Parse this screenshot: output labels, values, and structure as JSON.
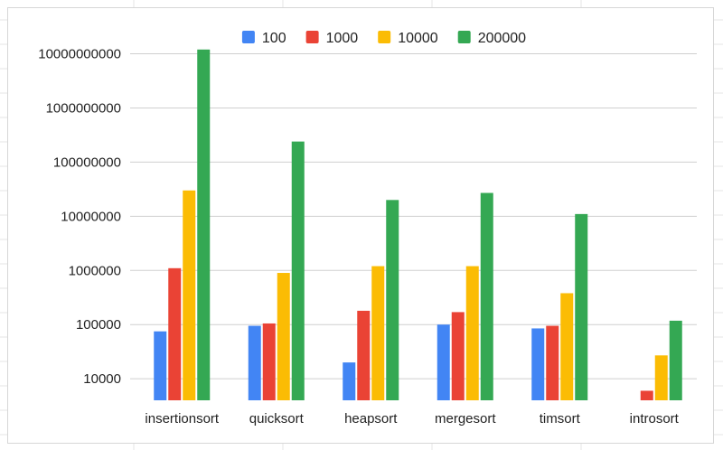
{
  "chart_data": {
    "type": "bar",
    "title": "",
    "xlabel": "",
    "ylabel": "",
    "yscale": "log",
    "ylim": [
      4000,
      15000000000
    ],
    "grid": true,
    "legend_position": "top",
    "categories": [
      "insertionsort",
      "quicksort",
      "heapsort",
      "mergesort",
      "timsort",
      "introsort"
    ],
    "y_ticks": [
      10000,
      100000,
      1000000,
      10000000,
      100000000,
      1000000000,
      10000000000
    ],
    "y_tick_labels": [
      "10000",
      "100000",
      "1000000",
      "10000000",
      "100000000",
      "1000000000",
      "10000000000"
    ],
    "series": [
      {
        "name": "100",
        "color": "#4285f4",
        "values": [
          75000,
          95000,
          20000,
          100000,
          85000,
          null
        ]
      },
      {
        "name": "1000",
        "color": "#ea4335",
        "values": [
          1100000,
          105000,
          180000,
          170000,
          95000,
          6000
        ]
      },
      {
        "name": "10000",
        "color": "#fbbc04",
        "values": [
          30000000,
          900000,
          1200000,
          1200000,
          380000,
          27000
        ]
      },
      {
        "name": "200000",
        "color": "#34a853",
        "values": [
          12000000000,
          240000000,
          20000000,
          27000000,
          11000000,
          118000
        ]
      }
    ]
  }
}
